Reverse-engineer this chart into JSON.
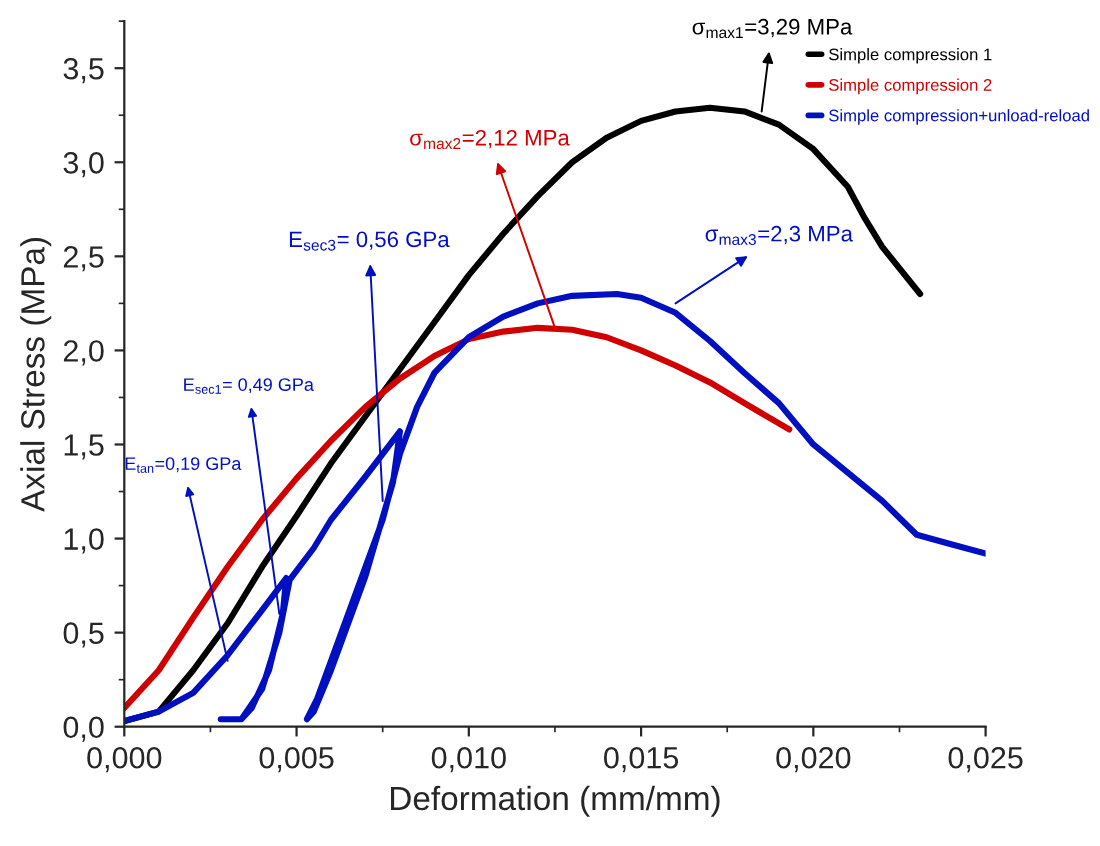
{
  "chart_data": {
    "type": "line",
    "xlabel": "Deformation (mm/mm)",
    "ylabel": "Axial Stress (MPa)",
    "xlim": [
      0,
      0.025
    ],
    "ylim": [
      0,
      3.75
    ],
    "xticks": [
      {
        "value": 0,
        "label": "0,000"
      },
      {
        "value": 0.005,
        "label": "0,005"
      },
      {
        "value": 0.01,
        "label": "0,010"
      },
      {
        "value": 0.015,
        "label": "0,015"
      },
      {
        "value": 0.02,
        "label": "0,020"
      },
      {
        "value": 0.025,
        "label": "0,025"
      }
    ],
    "yticks": [
      {
        "value": 0,
        "label": "0,0"
      },
      {
        "value": 0.5,
        "label": "0,5"
      },
      {
        "value": 1,
        "label": "1,0"
      },
      {
        "value": 1.5,
        "label": "1,5"
      },
      {
        "value": 2,
        "label": "2,0"
      },
      {
        "value": 2.5,
        "label": "2,5"
      },
      {
        "value": 3,
        "label": "3,0"
      },
      {
        "value": 3.5,
        "label": "3,5"
      }
    ],
    "legend": "top right",
    "marker": "none",
    "line_style": "solid",
    "series": [
      {
        "name": "Simple compression 1",
        "color": "#000000",
        "x": [
          0,
          0.001,
          0.002,
          0.003,
          0.004,
          0.005,
          0.006,
          0.007,
          0.008,
          0.009,
          0.01,
          0.011,
          0.012,
          0.013,
          0.014,
          0.015,
          0.016,
          0.017,
          0.018,
          0.019,
          0.02,
          0.021,
          0.0215,
          0.022,
          0.0231
        ],
        "values": [
          0.03,
          0.08,
          0.3,
          0.55,
          0.85,
          1.12,
          1.4,
          1.65,
          1.9,
          2.15,
          2.4,
          2.62,
          2.82,
          3.0,
          3.13,
          3.22,
          3.27,
          3.29,
          3.27,
          3.2,
          3.07,
          2.87,
          2.7,
          2.55,
          2.3
        ]
      },
      {
        "name": "Simple compression 2",
        "color": "#d00000",
        "x": [
          0,
          0.001,
          0.002,
          0.003,
          0.004,
          0.005,
          0.006,
          0.007,
          0.008,
          0.009,
          0.01,
          0.011,
          0.012,
          0.013,
          0.014,
          0.015,
          0.016,
          0.017,
          0.018,
          0.0193
        ],
        "values": [
          0.1,
          0.3,
          0.58,
          0.85,
          1.1,
          1.32,
          1.52,
          1.7,
          1.85,
          1.97,
          2.06,
          2.1,
          2.12,
          2.11,
          2.07,
          2.0,
          1.92,
          1.83,
          1.72,
          1.58
        ]
      },
      {
        "name": "Simple compression+unload-reload",
        "color": "#0010c0",
        "x": [
          0,
          0.001,
          0.002,
          0.003,
          0.004,
          0.0047,
          0.0046,
          0.0042,
          0.0037,
          0.0034,
          0.0028,
          0.0034,
          0.004,
          0.0045,
          0.0048,
          0.0055,
          0.006,
          0.007,
          0.008,
          0.0078,
          0.007,
          0.006,
          0.0055,
          0.0053,
          0.0056,
          0.0065,
          0.0075,
          0.008,
          0.0085,
          0.009,
          0.01,
          0.011,
          0.012,
          0.013,
          0.0143,
          0.015,
          0.016,
          0.017,
          0.018,
          0.019,
          0.02,
          0.021,
          0.022,
          0.023,
          0.024,
          0.025
        ],
        "values": [
          0.03,
          0.08,
          0.18,
          0.38,
          0.62,
          0.79,
          0.6,
          0.3,
          0.1,
          0.04,
          0.04,
          0.04,
          0.2,
          0.5,
          0.78,
          0.95,
          1.1,
          1.33,
          1.57,
          1.3,
          0.8,
          0.3,
          0.08,
          0.04,
          0.15,
          0.6,
          1.1,
          1.45,
          1.7,
          1.88,
          2.07,
          2.18,
          2.25,
          2.29,
          2.3,
          2.28,
          2.2,
          2.05,
          1.88,
          1.72,
          1.5,
          1.35,
          1.2,
          1.02,
          0.97,
          0.92
        ]
      }
    ],
    "annotations": [
      {
        "text": "σ$_{max1}$=3,29 MPa",
        "x": 0.0185,
        "y": 3.27
      },
      {
        "text": "σ$_{max2}$=2,12 MPa",
        "x": 0.0125,
        "y": 2.12
      },
      {
        "text": "σ$_{max3}$=2,3 MPa",
        "x": 0.016,
        "y": 2.25
      },
      {
        "text": "E$_{sec3}$= 0,56 GPa",
        "x": 0.0075,
        "y": 1.2
      },
      {
        "text": "E$_{sec1}$= 0,49 GPa",
        "x": 0.0045,
        "y": 0.6
      },
      {
        "text": "E$_{tan}$=0,19 GPa",
        "x": 0.003,
        "y": 0.35
      }
    ]
  }
}
